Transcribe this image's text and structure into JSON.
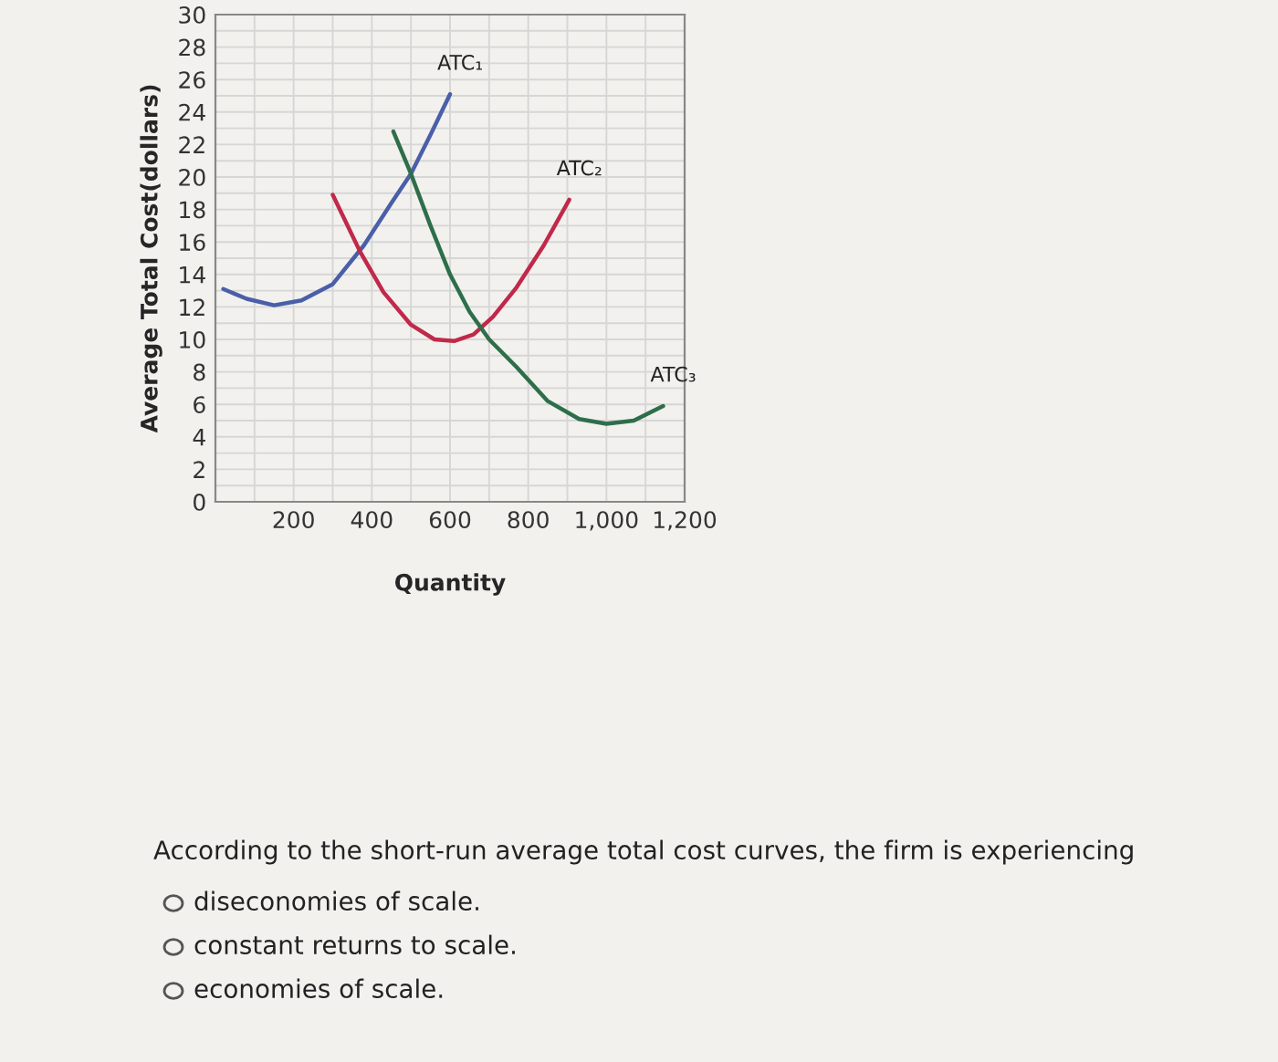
{
  "chart_data": {
    "type": "line",
    "xlabel": "Quantity",
    "ylabel": "Average Total Cost(dollars)",
    "series": [
      {
        "name": "ATC₁",
        "color": "#4a5fa8",
        "x": [
          20,
          80,
          150,
          220,
          300,
          380,
          450,
          500,
          550,
          600
        ],
        "values": [
          13.1,
          12.5,
          12.1,
          12.4,
          13.4,
          15.8,
          18.4,
          20.2,
          22.6,
          25.1
        ]
      },
      {
        "name": "ATC₂",
        "color": "#c0294a",
        "x": [
          300,
          370,
          430,
          500,
          560,
          610,
          660,
          710,
          770,
          840,
          905
        ],
        "values": [
          18.9,
          15.4,
          12.9,
          10.9,
          10.0,
          9.9,
          10.3,
          11.4,
          13.2,
          15.8,
          18.6
        ]
      },
      {
        "name": "ATC₃",
        "color": "#2e6e4a",
        "x": [
          455,
          500,
          550,
          600,
          650,
          700,
          770,
          850,
          930,
          1000,
          1070,
          1145
        ],
        "values": [
          22.8,
          20.2,
          17.0,
          14.0,
          11.7,
          10.0,
          8.3,
          6.2,
          5.1,
          4.8,
          5.0,
          5.9
        ]
      }
    ],
    "xlim": [
      0,
      1200
    ],
    "xticks": [
      {
        "value": 0,
        "label": null
      },
      {
        "value": 100,
        "label": null
      },
      {
        "value": 200,
        "label": "200"
      },
      {
        "value": 300,
        "label": null
      },
      {
        "value": 400,
        "label": "400"
      },
      {
        "value": 500,
        "label": null
      },
      {
        "value": 600,
        "label": "600"
      },
      {
        "value": 700,
        "label": null
      },
      {
        "value": 800,
        "label": "800"
      },
      {
        "value": 900,
        "label": null
      },
      {
        "value": 1000,
        "label": "1,000"
      },
      {
        "value": 1100,
        "label": null
      },
      {
        "value": 1200,
        "label": "1,200"
      }
    ],
    "ylim": [
      0,
      30
    ],
    "yticks": [
      0,
      {
        "value": 1,
        "label": null
      },
      2,
      {
        "value": 3,
        "label": null
      },
      4,
      {
        "value": 5,
        "label": null
      },
      6,
      {
        "value": 7,
        "label": null
      },
      8,
      {
        "value": 9,
        "label": null
      },
      10,
      {
        "value": 11,
        "label": null
      },
      12,
      {
        "value": 13,
        "label": null
      },
      14,
      {
        "value": 15,
        "label": null
      },
      16,
      {
        "value": 17,
        "label": null
      },
      18,
      {
        "value": 19,
        "label": null
      },
      20,
      {
        "value": 21,
        "label": null
      },
      22,
      {
        "value": 23,
        "label": null
      },
      24,
      {
        "value": 25,
        "label": null
      },
      26,
      {
        "value": 27,
        "label": null
      },
      28,
      {
        "value": 29,
        "label": null
      },
      30
    ],
    "grid": true,
    "legend": false,
    "marker": "none",
    "line_style": "solid",
    "annotations": [
      "According to the short-run average total cost curves, the firm is experiencing",
      "diseconomies of scale.",
      "constant returns to scale.",
      "economies of scale."
    ]
  }
}
